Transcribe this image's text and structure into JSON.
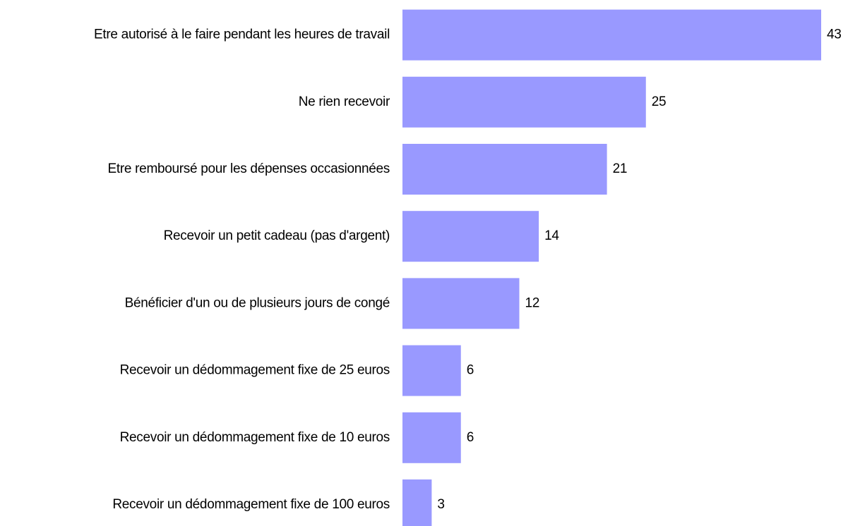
{
  "chart_data": {
    "type": "hbar",
    "categories": [
      "Etre autorisé à le faire pendant les heures de travail",
      "Ne rien recevoir",
      "Etre remboursé pour les dépenses occasionnées",
      "Recevoir un petit cadeau (pas d'argent)",
      "Bénéficier d'un ou de plusieurs jours de congé",
      "Recevoir un dédommagement fixe de 25 euros",
      "Recevoir un dédommagement fixe de 10 euros",
      "Recevoir un dédommagement fixe de 100 euros"
    ],
    "values": [
      43,
      25,
      21,
      14,
      12,
      6,
      6,
      3
    ],
    "color": "#9999ff",
    "xlim": [
      0,
      43
    ]
  }
}
